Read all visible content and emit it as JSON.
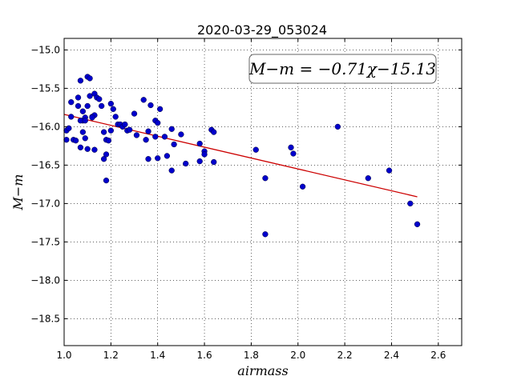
{
  "chart_data": {
    "type": "scatter",
    "title": "2020-03-29_053024",
    "xlabel": "airmass",
    "ylabel": "M−m",
    "xlim": [
      1.0,
      2.7
    ],
    "ylim": [
      -18.85,
      -14.85
    ],
    "y_inverted": true,
    "grid": true,
    "x_ticks": [
      1.0,
      1.2,
      1.4,
      1.6,
      1.8,
      2.0,
      2.2,
      2.4,
      2.6
    ],
    "x_tick_labels": [
      "1.0",
      "1.2",
      "1.4",
      "1.6",
      "1.8",
      "2.0",
      "2.2",
      "2.4",
      "2.6"
    ],
    "y_ticks": [
      -15.0,
      -15.5,
      -16.0,
      -16.5,
      -17.0,
      -17.5,
      -18.0,
      -18.5
    ],
    "y_tick_labels": [
      "−15.0",
      "−15.5",
      "−16.0",
      "−16.5",
      "−17.0",
      "−17.5",
      "−18.0",
      "−18.5"
    ],
    "annotation": "M−m = −0.71χ−15.13",
    "annotation_position": "top-right",
    "point_color": "#0000cc",
    "fit_color": "#cc0000",
    "fit": {
      "slope": -0.71,
      "intercept": -15.13,
      "x_range": [
        1.0,
        2.51
      ]
    },
    "series": [
      {
        "x": [
          1.01,
          1.01,
          1.02,
          1.03,
          1.03,
          1.04,
          1.05,
          1.06,
          1.06,
          1.07,
          1.07,
          1.08,
          1.08,
          1.08,
          1.09,
          1.09,
          1.1,
          1.1,
          1.1,
          1.11,
          1.11,
          1.12,
          1.13,
          1.13,
          1.13,
          1.14,
          1.15,
          1.16,
          1.17,
          1.17,
          1.18,
          1.18,
          1.18,
          1.19,
          1.2,
          1.2,
          1.21,
          1.22,
          1.23,
          1.24,
          1.25,
          1.26,
          1.27,
          1.28,
          1.3,
          1.31,
          1.34,
          1.35,
          1.36,
          1.36,
          1.37,
          1.39,
          1.39,
          1.4,
          1.4,
          1.41,
          1.43,
          1.44,
          1.46,
          1.46,
          1.47,
          1.5,
          1.52,
          1.58,
          1.58,
          1.6,
          1.6,
          1.63,
          1.64,
          1.64,
          1.82,
          1.86,
          1.86,
          1.97,
          1.98,
          2.02,
          2.17,
          2.3,
          2.39,
          2.48,
          2.51,
          1.07,
          1.09,
          1.12
        ],
        "y": [
          -16.17,
          -16.05,
          -16.02,
          -15.68,
          -15.87,
          -16.17,
          -16.18,
          -15.62,
          -15.73,
          -16.27,
          -15.4,
          -15.92,
          -16.07,
          -15.8,
          -15.88,
          -16.15,
          -15.35,
          -16.29,
          -15.73,
          -15.37,
          -15.6,
          -15.87,
          -15.57,
          -16.3,
          -15.85,
          -15.62,
          -15.64,
          -15.73,
          -16.42,
          -16.07,
          -16.36,
          -16.17,
          -16.7,
          -16.18,
          -16.05,
          -15.7,
          -15.77,
          -15.87,
          -15.97,
          -15.97,
          -16.0,
          -15.97,
          -16.05,
          -16.04,
          -15.83,
          -16.11,
          -15.65,
          -16.17,
          -16.06,
          -16.42,
          -15.72,
          -15.92,
          -16.13,
          -16.41,
          -15.95,
          -15.77,
          -16.13,
          -16.38,
          -16.57,
          -16.03,
          -16.23,
          -16.1,
          -16.48,
          -16.45,
          -16.22,
          -16.32,
          -16.36,
          -16.04,
          -16.07,
          -16.46,
          -16.3,
          -16.67,
          -17.4,
          -16.27,
          -16.35,
          -16.78,
          -16.0,
          -16.67,
          -16.57,
          -17.0,
          -17.27,
          -15.92,
          -15.92,
          -15.88
        ]
      }
    ]
  }
}
